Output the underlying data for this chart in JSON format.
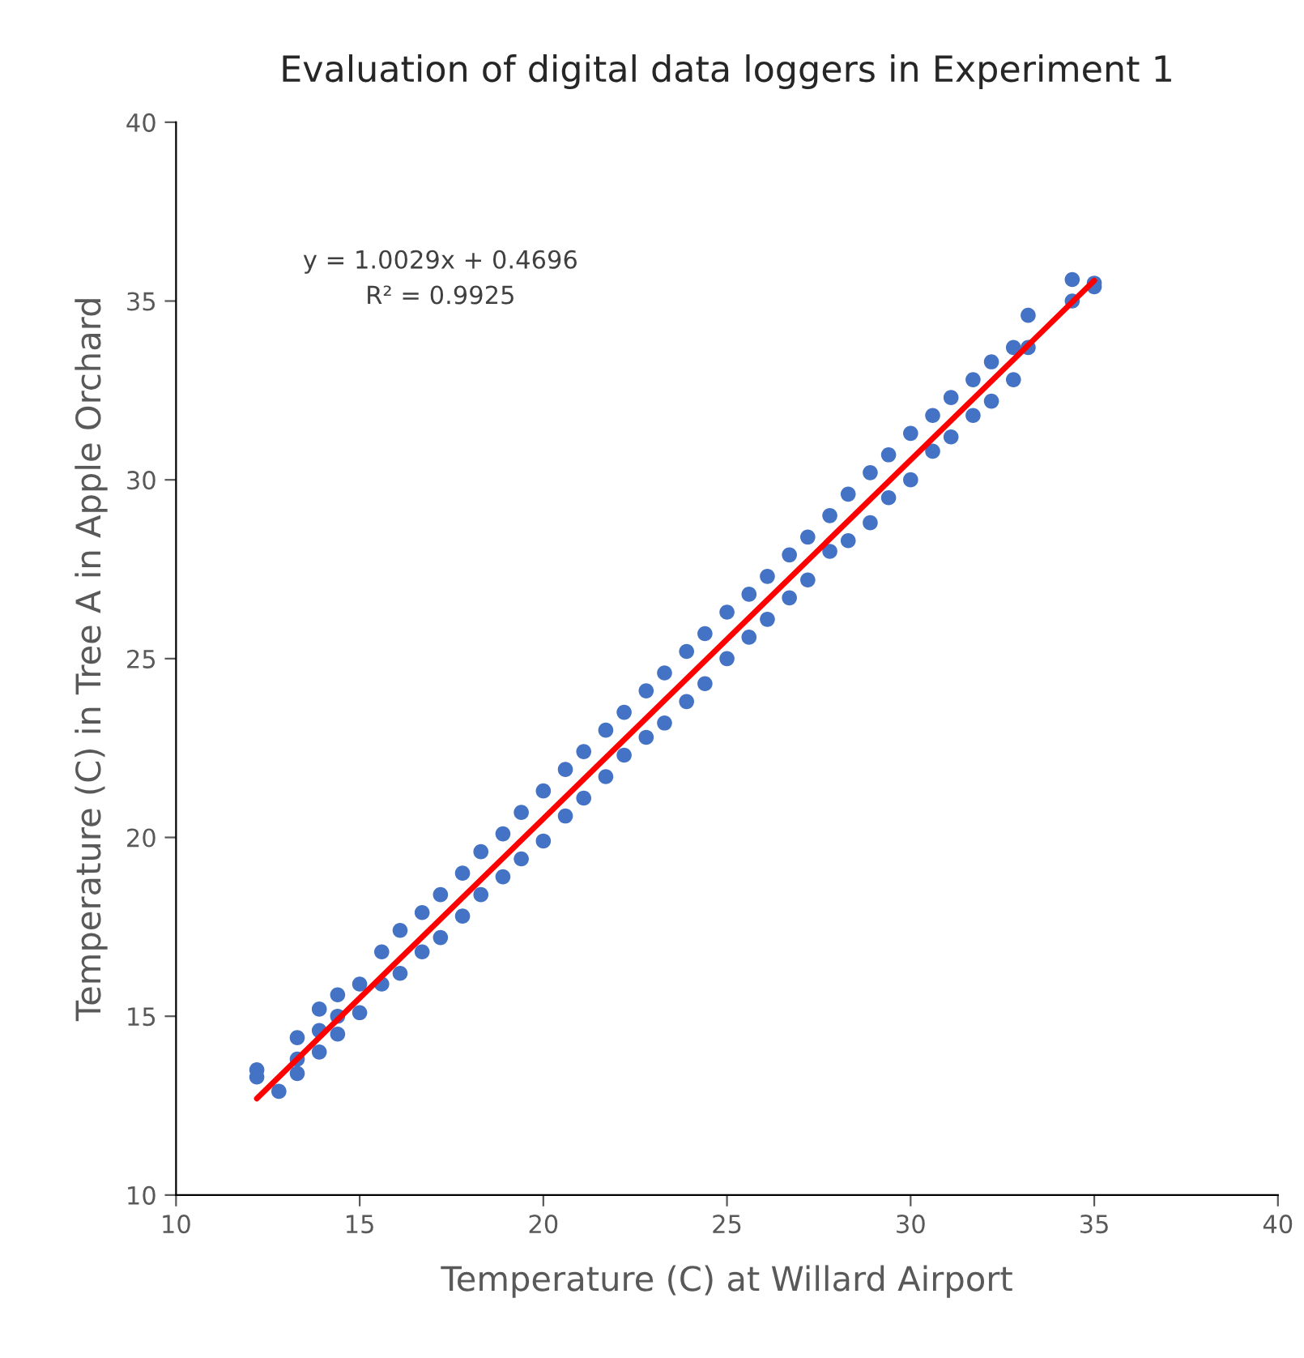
{
  "chart_data": {
    "type": "scatter",
    "title": "Evaluation of digital data loggers in Experiment 1",
    "xlabel": "Temperature (C) at Willard Airport",
    "ylabel": "Temperature (C) in Tree A in Apple Orchard",
    "annotations": [
      "y = 1.0029x + 0.4696",
      "R² = 0.9925"
    ],
    "xlim": [
      10,
      40
    ],
    "xticks": [
      10,
      15,
      20,
      25,
      30,
      35,
      40
    ],
    "ylim": [
      10,
      40
    ],
    "yticks": [
      10,
      15,
      20,
      25,
      30,
      35,
      40
    ],
    "grid": false,
    "legend": false,
    "series": [
      {
        "marker": "circle",
        "color": "#4472c4",
        "x": [
          12.2,
          12.2,
          12.8,
          13.3,
          13.3,
          13.3,
          13.9,
          13.9,
          13.9,
          14.4,
          14.4,
          14.4,
          15.0,
          15.0,
          15.6,
          15.6,
          16.1,
          16.1,
          16.7,
          16.7,
          17.2,
          17.2,
          17.8,
          17.8,
          18.3,
          18.3,
          18.9,
          18.9,
          19.4,
          19.4,
          20.0,
          20.0,
          20.6,
          20.6,
          21.1,
          21.1,
          21.7,
          21.7,
          22.2,
          22.2,
          22.8,
          22.8,
          23.3,
          23.3,
          23.9,
          23.9,
          24.4,
          24.4,
          25.0,
          25.0,
          25.6,
          25.6,
          26.1,
          26.1,
          26.7,
          26.7,
          27.2,
          27.2,
          27.8,
          27.8,
          28.3,
          28.3,
          28.9,
          28.9,
          29.4,
          29.4,
          30.0,
          30.0,
          30.6,
          30.6,
          31.1,
          31.1,
          31.7,
          31.7,
          32.2,
          32.2,
          32.8,
          32.8,
          33.2,
          33.2,
          34.4,
          34.4,
          35.0,
          35.0
        ],
        "values": [
          13.3,
          13.5,
          12.9,
          13.4,
          13.8,
          14.4,
          14.0,
          14.6,
          15.2,
          14.5,
          15.0,
          15.6,
          15.1,
          15.9,
          15.9,
          16.8,
          16.2,
          17.4,
          16.8,
          17.9,
          17.2,
          18.4,
          17.8,
          19.0,
          18.4,
          19.6,
          18.9,
          20.1,
          19.4,
          20.7,
          19.9,
          21.3,
          20.6,
          21.9,
          21.1,
          22.4,
          21.7,
          23.0,
          22.3,
          23.5,
          22.8,
          24.1,
          23.2,
          24.6,
          23.8,
          25.2,
          24.3,
          25.7,
          25.0,
          26.3,
          25.6,
          26.8,
          26.1,
          27.3,
          26.7,
          27.9,
          27.2,
          28.4,
          28.0,
          29.0,
          28.3,
          29.6,
          28.8,
          30.2,
          29.5,
          30.7,
          30.0,
          31.3,
          30.8,
          31.8,
          31.2,
          32.3,
          31.8,
          32.8,
          32.2,
          33.3,
          32.8,
          33.7,
          33.7,
          34.6,
          35.0,
          35.6,
          35.4,
          35.5
        ]
      },
      {
        "type": "line",
        "color": "#ff0000",
        "x": [
          12.2,
          35.0
        ],
        "values": [
          12.7,
          35.57
        ]
      }
    ]
  }
}
